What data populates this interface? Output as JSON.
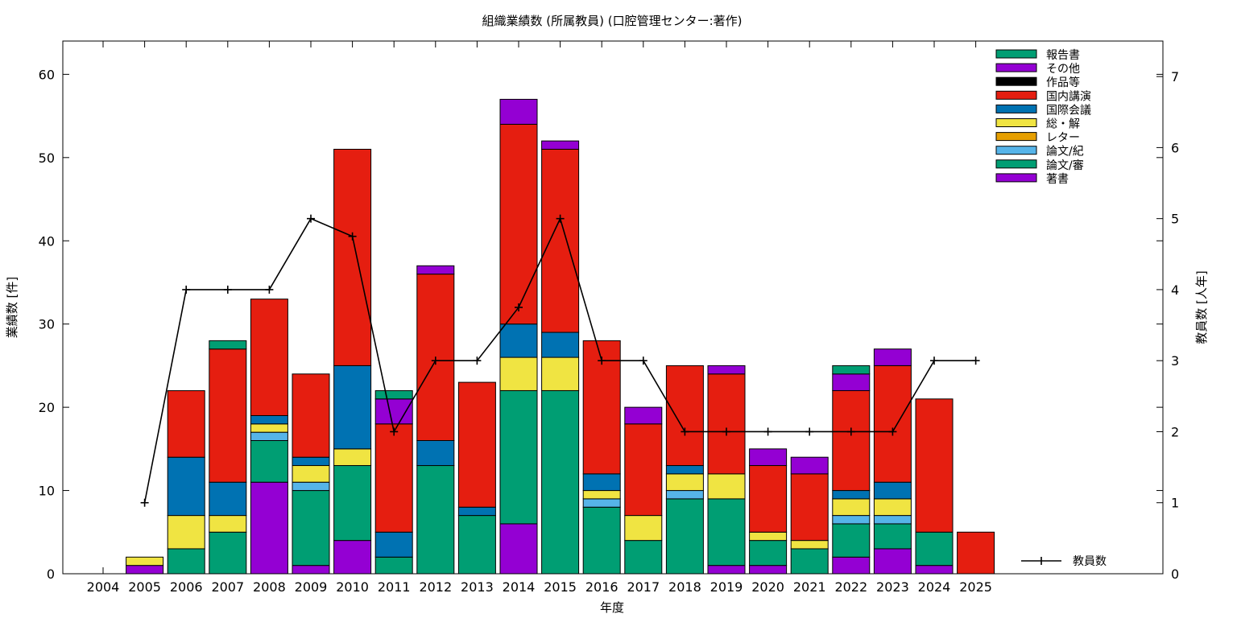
{
  "chart_data": {
    "type": "bar",
    "title": "組織業績数 (所属教員) (口腔管理センター:著作)",
    "xlabel": "年度",
    "ylabel": "業績数 [件]",
    "y2label": "教員数 [人年]",
    "categories": [
      "2004",
      "2005",
      "2006",
      "2007",
      "2008",
      "2009",
      "2010",
      "2011",
      "2012",
      "2013",
      "2014",
      "2015",
      "2016",
      "2017",
      "2018",
      "2019",
      "2020",
      "2021",
      "2022",
      "2023",
      "2024",
      "2025"
    ],
    "ylim": [
      0,
      64
    ],
    "y_ticks": [
      "0",
      "10",
      "20",
      "30",
      "40",
      "50",
      "60"
    ],
    "y2lim": [
      0,
      7.5
    ],
    "y2_ticks": [
      "0",
      "1",
      "2",
      "3",
      "4",
      "5",
      "6",
      "7"
    ],
    "stacked": true,
    "legend_position": "top-right",
    "series": [
      {
        "name": "著書",
        "color": "#9400d3",
        "values": [
          0,
          1,
          0,
          0,
          11,
          1,
          4,
          0,
          0,
          0,
          6,
          0,
          0,
          0,
          0,
          1,
          1,
          0,
          2,
          3,
          1,
          0
        ]
      },
      {
        "name": "論文/審",
        "color": "#009e73",
        "values": [
          0,
          0,
          3,
          5,
          5,
          9,
          9,
          2,
          13,
          7,
          16,
          22,
          8,
          4,
          9,
          8,
          3,
          3,
          4,
          3,
          4,
          0
        ]
      },
      {
        "name": "論文/紀",
        "color": "#56b4e9",
        "values": [
          0,
          0,
          0,
          0,
          1,
          1,
          0,
          0,
          0,
          0,
          0,
          0,
          1,
          0,
          1,
          0,
          0,
          0,
          1,
          1,
          0,
          0
        ]
      },
      {
        "name": "レター",
        "color": "#e69f00",
        "values": [
          0,
          0,
          0,
          0,
          0,
          0,
          0,
          0,
          0,
          0,
          0,
          0,
          0,
          0,
          0,
          0,
          0,
          0,
          0,
          0,
          0,
          0
        ]
      },
      {
        "name": "総・解",
        "color": "#f0e442",
        "values": [
          0,
          1,
          4,
          2,
          1,
          2,
          2,
          0,
          0,
          0,
          4,
          4,
          1,
          3,
          2,
          3,
          1,
          1,
          2,
          2,
          0,
          0
        ]
      },
      {
        "name": "国際会議",
        "color": "#0072b2",
        "values": [
          0,
          0,
          7,
          4,
          1,
          1,
          10,
          3,
          3,
          1,
          4,
          3,
          2,
          0,
          1,
          0,
          0,
          0,
          1,
          2,
          0,
          0
        ]
      },
      {
        "name": "国内講演",
        "color": "#e51e10",
        "values": [
          0,
          0,
          8,
          16,
          14,
          10,
          26,
          13,
          20,
          15,
          24,
          22,
          16,
          11,
          12,
          12,
          8,
          8,
          12,
          14,
          16,
          5
        ]
      },
      {
        "name": "作品等",
        "color": "#000000",
        "values": [
          0,
          0,
          0,
          0,
          0,
          0,
          0,
          0,
          0,
          0,
          0,
          0,
          0,
          0,
          0,
          0,
          0,
          0,
          0,
          0,
          0,
          0
        ]
      },
      {
        "name": "その他",
        "color": "#9400d3",
        "values": [
          0,
          0,
          0,
          0,
          0,
          0,
          0,
          3,
          1,
          0,
          3,
          1,
          0,
          2,
          0,
          1,
          2,
          2,
          2,
          2,
          0,
          0
        ]
      },
      {
        "name": "報告書",
        "color": "#009e73",
        "values": [
          0,
          0,
          0,
          1,
          0,
          0,
          0,
          1,
          0,
          0,
          0,
          0,
          0,
          0,
          0,
          0,
          0,
          0,
          1,
          0,
          0,
          0
        ]
      }
    ],
    "line_series": {
      "name": "教員数",
      "color": "#000000",
      "values": [
        null,
        1,
        4,
        4,
        4,
        5,
        4.75,
        2,
        3,
        3,
        3.75,
        5,
        3,
        3,
        2,
        2,
        2,
        2,
        2,
        2,
        3,
        3
      ]
    }
  }
}
